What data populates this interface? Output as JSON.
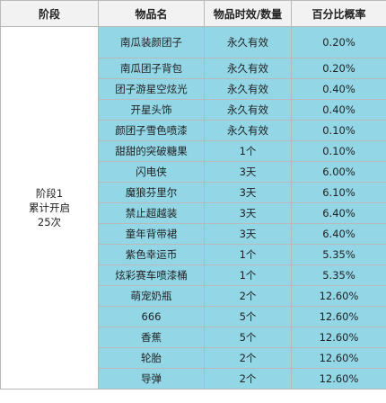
{
  "header": {
    "stage": "阶段",
    "item": "物品名",
    "duration": "物品时效/数量",
    "probability": "百分比概率"
  },
  "stage": {
    "line1": "阶段1",
    "line2": "累计开启",
    "line3": "25次"
  },
  "rows": [
    {
      "item": "南瓜装颜团子",
      "duration": "永久有效",
      "probability": "0.20%"
    },
    {
      "item": "南瓜团子背包",
      "duration": "永久有效",
      "probability": "0.20%"
    },
    {
      "item": "团子游星空炫光",
      "duration": "永久有效",
      "probability": "0.40%"
    },
    {
      "item": "开星头饰",
      "duration": "永久有效",
      "probability": "0.40%"
    },
    {
      "item": "颜团子雪色喷漆",
      "duration": "永久有效",
      "probability": "0.10%"
    },
    {
      "item": "甜甜的突破糖果",
      "duration": "1个",
      "probability": "0.10%"
    },
    {
      "item": "闪电侠",
      "duration": "3天",
      "probability": "6.00%"
    },
    {
      "item": "魔狼芬里尔",
      "duration": "3天",
      "probability": "6.10%"
    },
    {
      "item": "禁止超越装",
      "duration": "3天",
      "probability": "6.40%"
    },
    {
      "item": "童年背带裙",
      "duration": "3天",
      "probability": "6.40%"
    },
    {
      "item": "紫色幸运币",
      "duration": "1个",
      "probability": "5.35%"
    },
    {
      "item": "炫彩赛车喷漆桶",
      "duration": "1个",
      "probability": "5.35%"
    },
    {
      "item": "萌宠奶瓶",
      "duration": "2个",
      "probability": "12.60%"
    },
    {
      "item": "666",
      "duration": "5个",
      "probability": "12.60%"
    },
    {
      "item": "香蕉",
      "duration": "5个",
      "probability": "12.60%"
    },
    {
      "item": "轮胎",
      "duration": "2个",
      "probability": "12.60%"
    },
    {
      "item": "导弹",
      "duration": "2个",
      "probability": "12.60%"
    }
  ]
}
